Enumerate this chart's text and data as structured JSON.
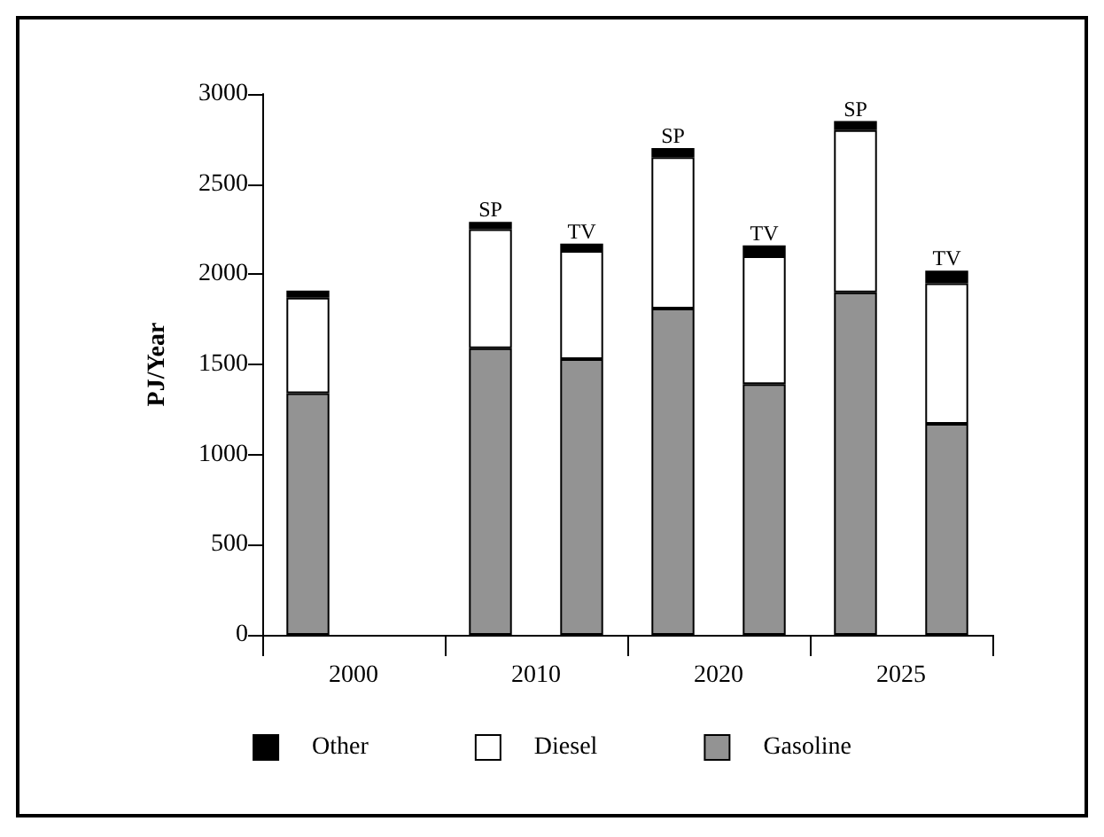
{
  "chart_data": {
    "type": "bar",
    "stacked": true,
    "ylabel": "PJ/Year",
    "categories": [
      "2000",
      null,
      "2010",
      null,
      "2020",
      null,
      "2025",
      null
    ],
    "ylim": [
      0,
      3000
    ],
    "yticks": [
      0,
      500,
      1000,
      1500,
      2000,
      2500,
      3000
    ],
    "grid": false,
    "legend": "bottom",
    "series": [
      {
        "name": "Gasoline",
        "color": "#939393",
        "values": [
          1340,
          null,
          1590,
          1530,
          1810,
          1390,
          1900,
          1170
        ]
      },
      {
        "name": "Diesel",
        "color": "#ffffff",
        "values": [
          530,
          null,
          660,
          600,
          840,
          710,
          900,
          780
        ]
      },
      {
        "name": "Other",
        "color": "#000000",
        "values": [
          40,
          null,
          40,
          40,
          50,
          60,
          50,
          70
        ],
        "value_labels": [
          null,
          null,
          "SP",
          "TV",
          "SP",
          "TV",
          "SP",
          "TV"
        ]
      }
    ]
  }
}
